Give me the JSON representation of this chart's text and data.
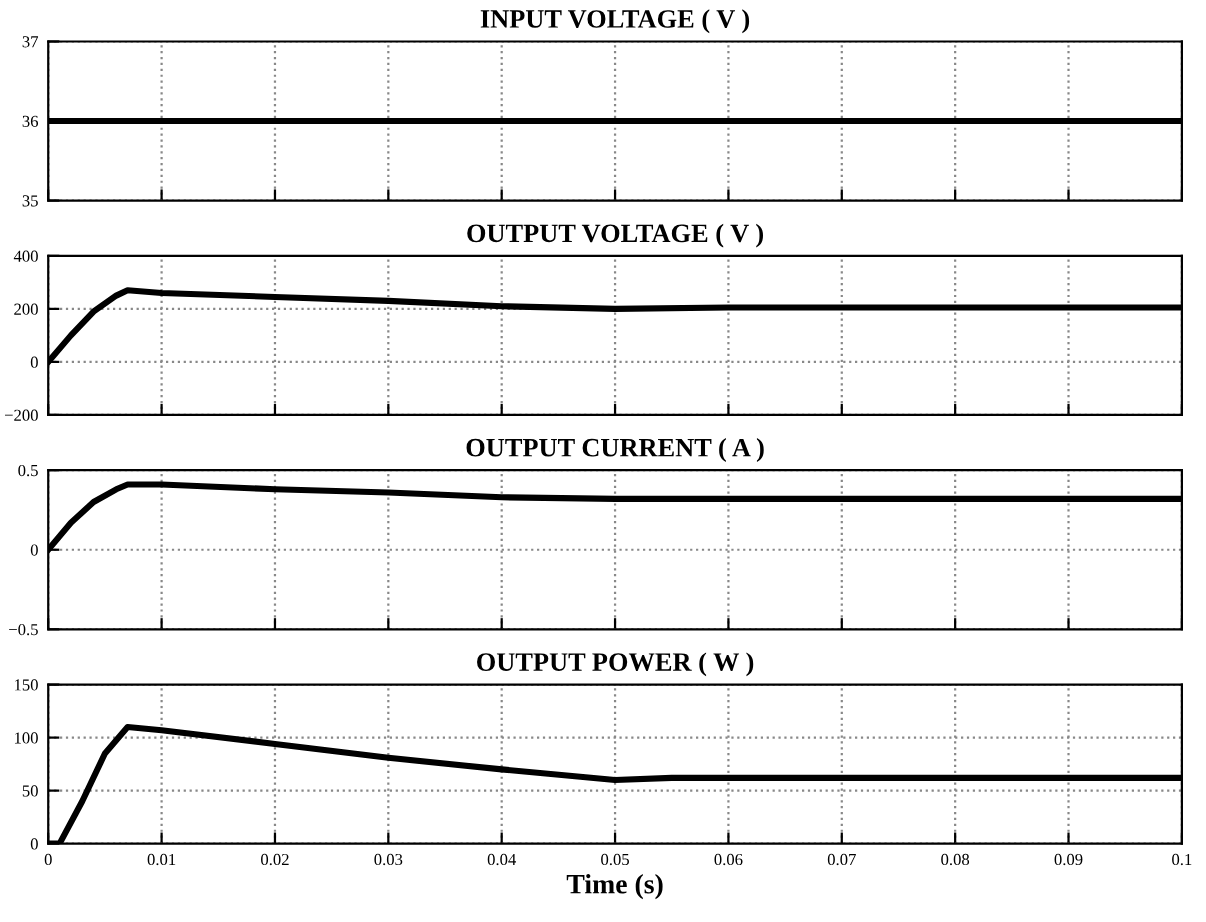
{
  "chart_data": [
    {
      "type": "line",
      "title": "INPUT VOLTAGE ( V )",
      "x": [
        0,
        0.1
      ],
      "series": [
        {
          "color": "#000000",
          "values": [
            36,
            36
          ]
        }
      ],
      "xlim": [
        0,
        0.1
      ],
      "xticks": [
        0,
        0.01,
        0.02,
        0.03,
        0.04,
        0.05,
        0.06,
        0.07,
        0.08,
        0.09,
        0.1
      ],
      "ylim": [
        35,
        37
      ],
      "yticks": [
        35,
        36,
        37
      ],
      "grid": true,
      "tick_labels": "y"
    },
    {
      "type": "line",
      "title": "OUTPUT VOLTAGE ( V )",
      "x": [
        0,
        0.002,
        0.004,
        0.006,
        0.007,
        0.01,
        0.02,
        0.03,
        0.04,
        0.05,
        0.06,
        0.07,
        0.1
      ],
      "series": [
        {
          "color": "#000000",
          "values": [
            0,
            100,
            190,
            250,
            270,
            260,
            245,
            230,
            210,
            200,
            205,
            205,
            205
          ]
        }
      ],
      "xlim": [
        0,
        0.1
      ],
      "xticks": [
        0,
        0.01,
        0.02,
        0.03,
        0.04,
        0.05,
        0.06,
        0.07,
        0.08,
        0.09,
        0.1
      ],
      "ylim": [
        -200,
        400
      ],
      "yticks": [
        -200,
        0,
        200,
        400
      ],
      "grid": true,
      "tick_labels": "y"
    },
    {
      "type": "line",
      "title": "OUTPUT CURRENT ( A )",
      "x": [
        0,
        0.002,
        0.004,
        0.006,
        0.007,
        0.01,
        0.02,
        0.03,
        0.04,
        0.05,
        0.1
      ],
      "series": [
        {
          "color": "#000000",
          "values": [
            0,
            0.17,
            0.3,
            0.38,
            0.41,
            0.41,
            0.38,
            0.36,
            0.33,
            0.32,
            0.32
          ]
        }
      ],
      "xlim": [
        0,
        0.1
      ],
      "xticks": [
        0,
        0.01,
        0.02,
        0.03,
        0.04,
        0.05,
        0.06,
        0.07,
        0.08,
        0.09,
        0.1
      ],
      "ylim": [
        -0.5,
        0.5
      ],
      "yticks": [
        -0.5,
        0,
        0.5
      ],
      "grid": true,
      "tick_labels": "y"
    },
    {
      "type": "line",
      "title": "OUTPUT POWER ( W )",
      "xlabel": "Time (s)",
      "x": [
        0,
        0.001,
        0.003,
        0.005,
        0.007,
        0.01,
        0.02,
        0.03,
        0.04,
        0.05,
        0.055,
        0.1
      ],
      "series": [
        {
          "color": "#000000",
          "values": [
            0,
            0,
            40,
            85,
            110,
            107,
            94,
            81,
            70,
            60,
            62,
            62
          ]
        }
      ],
      "xlim": [
        0,
        0.1
      ],
      "xticks": [
        0,
        0.01,
        0.02,
        0.03,
        0.04,
        0.05,
        0.06,
        0.07,
        0.08,
        0.09,
        0.1
      ],
      "ylim": [
        0,
        150
      ],
      "yticks": [
        0,
        50,
        100,
        150
      ],
      "grid": true
    }
  ]
}
